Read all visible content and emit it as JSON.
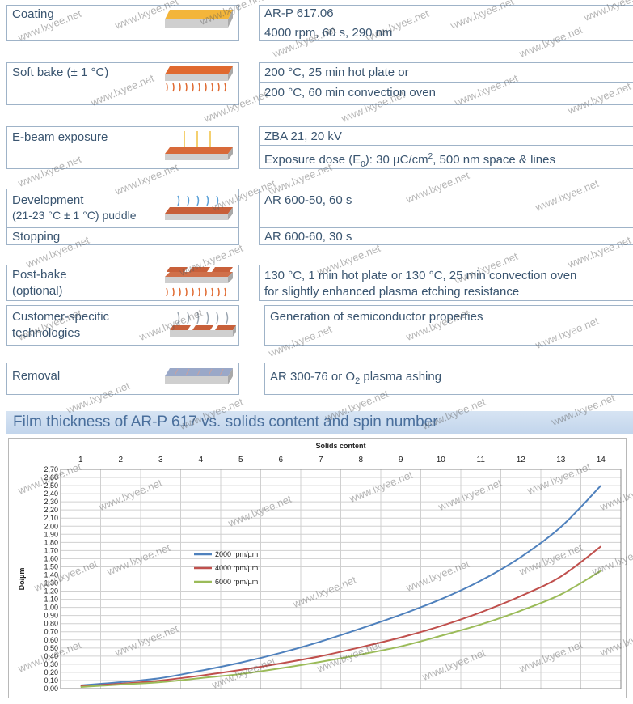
{
  "steps": [
    {
      "label": "Coating",
      "lines": [
        "AR-P 617.06",
        "4000 rpm, 60 s, 290 nm"
      ]
    },
    {
      "label": "Soft bake (± 1 °C)",
      "lines": [
        "200 °C, 25 min  hot plate or",
        "200 °C, 60 min convection oven"
      ]
    },
    {
      "label": "E-beam exposure",
      "lines": [
        "ZBA 21, 20 kV"
      ]
    },
    {
      "label": "Development",
      "label2": "(21-23 °C ± 1 °C) puddle",
      "lines": [
        "AR 600-50, 60 s"
      ]
    },
    {
      "label": "Stopping",
      "lines": [
        "AR 600-60, 30 s"
      ]
    },
    {
      "label": "Post-bake",
      "label2": "(optional)",
      "lines": [
        "130 °C, 1 min hot plate or 130 °C, 25 min convection oven",
        "for slightly enhanced plasma etching resistance"
      ]
    },
    {
      "label": "Customer-specific",
      "label2": "technologies",
      "lines": [
        "Generation of semiconductor properties"
      ]
    },
    {
      "label": "Removal",
      "lines": []
    }
  ],
  "exposure_dose": {
    "prefix": "Exposure dose (E",
    "sub": "0",
    "middle": "): 30 µC/cm",
    "sup": "2",
    "suffix": ", 500 nm space & lines"
  },
  "removal_text": {
    "prefix": "AR 300-76 or O",
    "sub": "2",
    "suffix": " plasma ashing"
  },
  "section_title": "Film thickness of AR-P 617 vs. solids content and spin number",
  "watermark": "www.lxyee.net",
  "colors": {
    "series1": "#4f81bd",
    "series2": "#c0504d",
    "series3": "#9bbb59"
  },
  "chart_data": {
    "type": "line",
    "title": "",
    "xlabel": "Solids content",
    "ylabel": "Do/µm",
    "x_axis_position": "top",
    "xlim": [
      0.5,
      14.5
    ],
    "ylim": [
      0,
      2.7
    ],
    "ytick_step": 0.1,
    "x_ticks": [
      "1",
      "2",
      "3",
      "4",
      "5",
      "6",
      "7",
      "8",
      "9",
      "10",
      "11",
      "12",
      "13",
      "14"
    ],
    "y_ticks": [
      "0,00",
      "0,10",
      "0,20",
      "0,30",
      "0,40",
      "0,50",
      "0,60",
      "0,70",
      "0,80",
      "0,90",
      "1,00",
      "1,10",
      "1,20",
      "1,30",
      "1,40",
      "1,50",
      "1,60",
      "1,70",
      "1,80",
      "1,90",
      "2,00",
      "2,10",
      "2,20",
      "2,30",
      "2,40",
      "2,50",
      "2,60",
      "2,70"
    ],
    "grid": true,
    "legend_position": "center-left",
    "x": [
      1,
      2,
      3,
      4,
      5,
      6,
      7,
      8,
      9,
      10,
      11,
      12,
      13,
      14
    ],
    "series": [
      {
        "name": "2000 rpm/µm",
        "values": [
          0.04,
          0.08,
          0.13,
          0.22,
          0.32,
          0.44,
          0.58,
          0.74,
          0.91,
          1.1,
          1.33,
          1.62,
          1.99,
          2.5
        ]
      },
      {
        "name": "4000 rpm/µm",
        "values": [
          0.03,
          0.06,
          0.1,
          0.16,
          0.23,
          0.31,
          0.4,
          0.51,
          0.63,
          0.77,
          0.94,
          1.14,
          1.38,
          1.75
        ]
      },
      {
        "name": "6000 rpm/µm",
        "values": [
          0.02,
          0.05,
          0.08,
          0.13,
          0.18,
          0.25,
          0.33,
          0.42,
          0.52,
          0.65,
          0.79,
          0.96,
          1.16,
          1.45
        ]
      }
    ]
  }
}
